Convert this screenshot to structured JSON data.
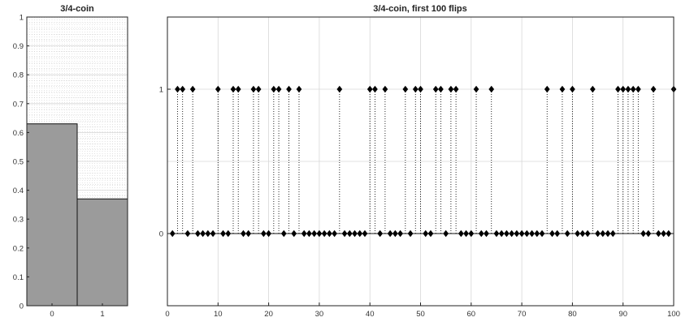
{
  "chart_data": [
    {
      "type": "bar",
      "title": "3/4-coin",
      "categories": [
        "0",
        "1"
      ],
      "values": [
        0.63,
        0.37
      ],
      "ylim": [
        0,
        1
      ],
      "yticks": [
        "0",
        "0.1",
        "0.2",
        "0.3",
        "0.4",
        "0.5",
        "0.6",
        "0.7",
        "0.8",
        "0.9",
        "1"
      ],
      "grid": true
    },
    {
      "type": "scatter",
      "title": "3/4-coin,  first 100 flips",
      "x": [
        1,
        2,
        3,
        4,
        5,
        6,
        7,
        8,
        9,
        10,
        11,
        12,
        13,
        14,
        15,
        16,
        17,
        18,
        19,
        20,
        21,
        22,
        23,
        24,
        25,
        26,
        27,
        28,
        29,
        30,
        31,
        32,
        33,
        34,
        35,
        36,
        37,
        38,
        39,
        40,
        41,
        42,
        43,
        44,
        45,
        46,
        47,
        48,
        49,
        50,
        51,
        52,
        53,
        54,
        55,
        56,
        57,
        58,
        59,
        60,
        61,
        62,
        63,
        64,
        65,
        66,
        67,
        68,
        69,
        70,
        71,
        72,
        73,
        74,
        75,
        76,
        77,
        78,
        79,
        80,
        81,
        82,
        83,
        84,
        85,
        86,
        87,
        88,
        89,
        90,
        91,
        92,
        93,
        94,
        95,
        96,
        97,
        98,
        99,
        100
      ],
      "y": [
        0,
        1,
        1,
        0,
        1,
        0,
        0,
        0,
        0,
        1,
        0,
        0,
        1,
        1,
        0,
        0,
        1,
        1,
        0,
        0,
        1,
        1,
        0,
        1,
        0,
        1,
        0,
        0,
        0,
        0,
        0,
        0,
        0,
        1,
        0,
        0,
        0,
        0,
        0,
        1,
        1,
        0,
        1,
        0,
        0,
        0,
        1,
        0,
        1,
        1,
        0,
        0,
        1,
        1,
        0,
        1,
        1,
        0,
        0,
        0,
        1,
        0,
        0,
        1,
        0,
        0,
        0,
        0,
        0,
        0,
        0,
        0,
        0,
        0,
        1,
        0,
        0,
        1,
        0,
        1,
        0,
        0,
        0,
        1,
        0,
        0,
        0,
        0,
        1,
        1,
        1,
        1,
        1,
        0,
        0,
        1,
        0,
        0,
        0,
        1
      ],
      "xlim": [
        0,
        100
      ],
      "ylim": [
        -0.5,
        1.5
      ],
      "xticks": [
        "0",
        "10",
        "20",
        "30",
        "40",
        "50",
        "60",
        "70",
        "80",
        "90",
        "100"
      ],
      "yticks": [
        "0",
        "1"
      ],
      "marker": "diamond",
      "grid": true
    }
  ]
}
